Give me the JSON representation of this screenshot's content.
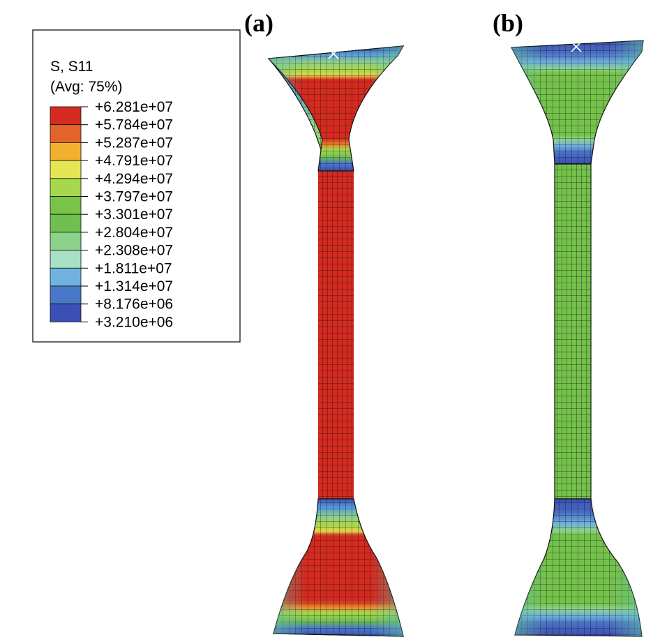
{
  "panels": [
    {
      "label": "(a)",
      "name": "panel-a"
    },
    {
      "label": "(b)",
      "name": "panel-b"
    }
  ],
  "legend": {
    "title": "S, S11",
    "subtitle": "(Avg: 75%)",
    "levels": [
      {
        "value": "+6.281e+07",
        "color": "#d42a1f"
      },
      {
        "value": "+5.784e+07",
        "color": "#e4632a"
      },
      {
        "value": "+5.287e+07",
        "color": "#f1b02f"
      },
      {
        "value": "+4.791e+07",
        "color": "#e4e654"
      },
      {
        "value": "+4.294e+07",
        "color": "#a6d74c"
      },
      {
        "value": "+3.797e+07",
        "color": "#78c447"
      },
      {
        "value": "+3.301e+07",
        "color": "#6fc050"
      },
      {
        "value": "+2.804e+07",
        "color": "#8cd28a"
      },
      {
        "value": "+2.308e+07",
        "color": "#a7e0c5"
      },
      {
        "value": "+1.811e+07",
        "color": "#6fb2df"
      },
      {
        "value": "+1.314e+07",
        "color": "#4a78c8"
      },
      {
        "value": "+8.176e+06",
        "color": "#3b50b5"
      },
      {
        "value": "+3.210e+06",
        "color": ""
      }
    ]
  },
  "colors": {
    "a_neck": "#d42a1f",
    "b_neck": "#74c24a",
    "grip_blue": "#3b55b8",
    "grip_edge": "#5fb8a6",
    "mesh_line": "#111111"
  }
}
